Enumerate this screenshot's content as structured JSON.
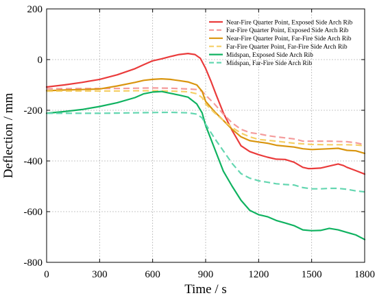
{
  "chart_data": {
    "type": "line",
    "title": "",
    "xlabel": "Time / s",
    "ylabel": "Deflection / mm",
    "xlim": [
      0,
      1800
    ],
    "ylim": [
      -800,
      200
    ],
    "xticks": [
      0,
      300,
      600,
      900,
      1200,
      1500,
      1800
    ],
    "yticks": [
      -800,
      -600,
      -400,
      -200,
      0,
      200
    ],
    "grid": true,
    "legend_position": "top-right",
    "series": [
      {
        "name": "Near-Fire Quarter Point, Exposed Side Arch Rib",
        "color": "#ea3b3b",
        "dash": "solid",
        "x": [
          0,
          100,
          200,
          300,
          400,
          500,
          550,
          600,
          650,
          700,
          750,
          800,
          840,
          870,
          900,
          930,
          960,
          1000,
          1050,
          1100,
          1150,
          1200,
          1250,
          1300,
          1350,
          1400,
          1450,
          1480,
          1500,
          1550,
          1600,
          1650,
          1680,
          1700,
          1750,
          1800
        ],
        "y": [
          -108,
          -100,
          -90,
          -78,
          -60,
          -36,
          -20,
          -5,
          3,
          12,
          20,
          24,
          20,
          5,
          -35,
          -85,
          -140,
          -210,
          -280,
          -340,
          -363,
          -375,
          -385,
          -393,
          -394,
          -405,
          -425,
          -430,
          -430,
          -428,
          -420,
          -412,
          -418,
          -425,
          -438,
          -452
        ]
      },
      {
        "name": "Far-Fire Quarter Point, Exposed Side Arch Rib",
        "color": "#f49b9b",
        "dash": "dashed",
        "x": [
          0,
          100,
          200,
          300,
          400,
          500,
          600,
          700,
          800,
          850,
          880,
          900,
          950,
          1000,
          1050,
          1100,
          1150,
          1200,
          1250,
          1300,
          1400,
          1450,
          1500,
          1600,
          1700,
          1750,
          1800
        ],
        "y": [
          -115,
          -115,
          -114,
          -114,
          -114,
          -113,
          -112,
          -113,
          -116,
          -118,
          -125,
          -140,
          -175,
          -215,
          -250,
          -275,
          -288,
          -293,
          -300,
          -305,
          -313,
          -322,
          -322,
          -322,
          -324,
          -328,
          -336
        ]
      },
      {
        "name": "Near-Fire Quarter Point, Far-Fire Side Arch Rib",
        "color": "#d9950e",
        "dash": "solid",
        "x": [
          0,
          100,
          200,
          300,
          400,
          500,
          550,
          600,
          650,
          700,
          750,
          800,
          850,
          880,
          900,
          950,
          1000,
          1050,
          1100,
          1150,
          1200,
          1250,
          1300,
          1400,
          1450,
          1500,
          1600,
          1650,
          1700,
          1750,
          1800
        ],
        "y": [
          -123,
          -120,
          -118,
          -116,
          -104,
          -90,
          -82,
          -78,
          -76,
          -78,
          -83,
          -88,
          -100,
          -125,
          -165,
          -205,
          -240,
          -275,
          -305,
          -320,
          -325,
          -330,
          -338,
          -345,
          -352,
          -355,
          -352,
          -350,
          -358,
          -360,
          -370
        ]
      },
      {
        "name": "Far-Fire Quarter Point, Far-Fire Side Arch Rib",
        "color": "#f5cf67",
        "dash": "dashed",
        "x": [
          0,
          100,
          200,
          300,
          400,
          500,
          600,
          700,
          800,
          850,
          880,
          900,
          950,
          1000,
          1050,
          1100,
          1150,
          1200,
          1300,
          1400,
          1500,
          1600,
          1700,
          1750,
          1800
        ],
        "y": [
          -125,
          -124,
          -124,
          -124,
          -124,
          -123,
          -123,
          -124,
          -127,
          -135,
          -150,
          -175,
          -210,
          -240,
          -268,
          -290,
          -305,
          -315,
          -322,
          -330,
          -335,
          -336,
          -336,
          -337,
          -340
        ]
      },
      {
        "name": "Midspan, Exposed Side Arch Rib",
        "color": "#0fb260",
        "dash": "solid",
        "x": [
          0,
          100,
          200,
          300,
          400,
          500,
          550,
          600,
          650,
          700,
          750,
          800,
          850,
          880,
          900,
          950,
          1000,
          1050,
          1100,
          1150,
          1200,
          1250,
          1300,
          1350,
          1400,
          1450,
          1500,
          1550,
          1600,
          1650,
          1700,
          1750,
          1800
        ],
        "y": [
          -212,
          -205,
          -197,
          -185,
          -170,
          -150,
          -135,
          -128,
          -126,
          -133,
          -140,
          -148,
          -175,
          -210,
          -260,
          -350,
          -440,
          -500,
          -555,
          -595,
          -612,
          -620,
          -635,
          -645,
          -655,
          -672,
          -675,
          -674,
          -666,
          -672,
          -682,
          -692,
          -710
        ]
      },
      {
        "name": "Midspan, Far-Fire Side Arch Rib",
        "color": "#63d6b0",
        "dash": "dashed",
        "x": [
          0,
          100,
          200,
          300,
          400,
          500,
          600,
          700,
          800,
          850,
          880,
          900,
          950,
          1000,
          1050,
          1100,
          1150,
          1200,
          1250,
          1300,
          1350,
          1400,
          1450,
          1500,
          1550,
          1600,
          1650,
          1700,
          1750,
          1800
        ],
        "y": [
          -212,
          -212,
          -212,
          -212,
          -211,
          -210,
          -209,
          -208,
          -210,
          -215,
          -230,
          -255,
          -310,
          -360,
          -410,
          -450,
          -468,
          -478,
          -484,
          -490,
          -493,
          -495,
          -505,
          -510,
          -510,
          -508,
          -508,
          -512,
          -518,
          -522
        ]
      }
    ]
  }
}
